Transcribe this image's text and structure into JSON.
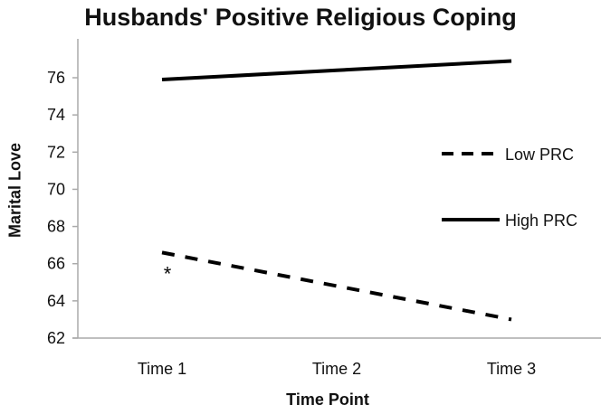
{
  "chart_data": {
    "type": "line",
    "title": "Husbands' Positive Religious Coping",
    "xlabel": "Time Point",
    "ylabel": "Marital Love",
    "categories": [
      "Time 1",
      "Time 2",
      "Time 3"
    ],
    "yticks": [
      62,
      64,
      66,
      68,
      70,
      72,
      74,
      76
    ],
    "ylim": [
      62,
      77
    ],
    "grid": false,
    "legend_position": "right",
    "series": [
      {
        "name": "Low PRC",
        "style": "dashed",
        "values": [
          66.6,
          64.8,
          63.0
        ]
      },
      {
        "name": "High PRC",
        "style": "solid",
        "values": [
          75.9,
          76.4,
          76.9
        ]
      }
    ],
    "annotations": [
      {
        "text": "*",
        "x": "Time 1",
        "series": "Low PRC"
      }
    ]
  }
}
